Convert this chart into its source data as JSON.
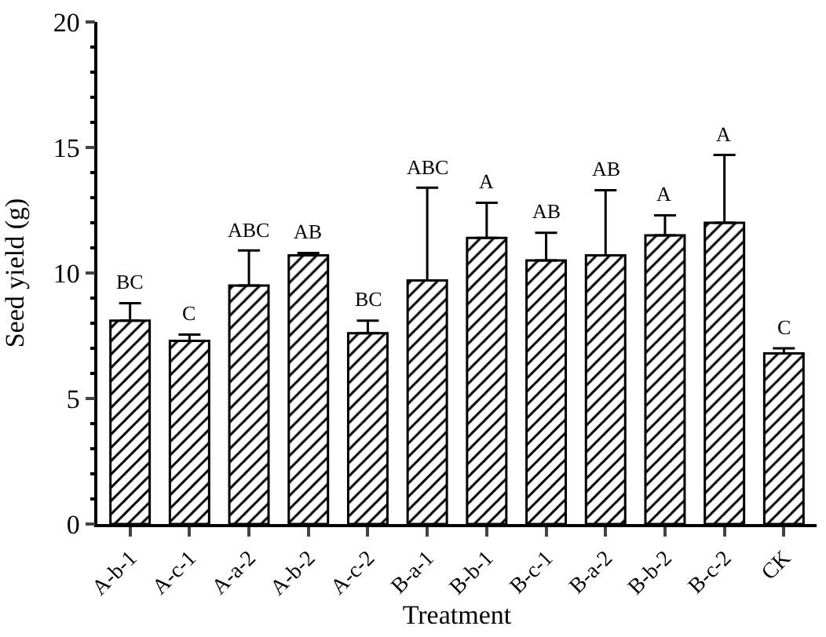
{
  "chart_data": {
    "type": "bar",
    "xlabel": "Treatment",
    "ylabel": "Seed yield (g)",
    "categories": [
      "A-b-1",
      "A-c-1",
      "A-a-2",
      "A-b-2",
      "A-c-2",
      "B-a-1",
      "B-b-1",
      "B-c-1",
      "B-a-2",
      "B-b-2",
      "B-c-2",
      "CK"
    ],
    "values": [
      8.1,
      7.3,
      9.5,
      10.7,
      7.6,
      9.7,
      11.4,
      10.5,
      10.7,
      11.5,
      12.0,
      6.8
    ],
    "errors": [
      [
        8.1,
        8.8
      ],
      [
        7.3,
        7.55
      ],
      [
        9.5,
        10.9
      ],
      [
        10.7,
        10.8
      ],
      [
        7.6,
        8.1
      ],
      [
        9.7,
        13.4
      ],
      [
        11.4,
        12.8
      ],
      [
        10.5,
        11.6
      ],
      [
        10.7,
        13.3
      ],
      [
        11.5,
        12.3
      ],
      [
        12.0,
        14.7
      ],
      [
        6.8,
        7.0
      ]
    ],
    "color": "#000000",
    "ylim": [
      0,
      20
    ],
    "yticks": [
      0,
      5,
      10,
      15,
      20
    ],
    "annotations": [
      "BC",
      "C",
      "ABC",
      "AB",
      "BC",
      "ABC",
      "A",
      "AB",
      "AB",
      "A",
      "A",
      "C"
    ]
  }
}
